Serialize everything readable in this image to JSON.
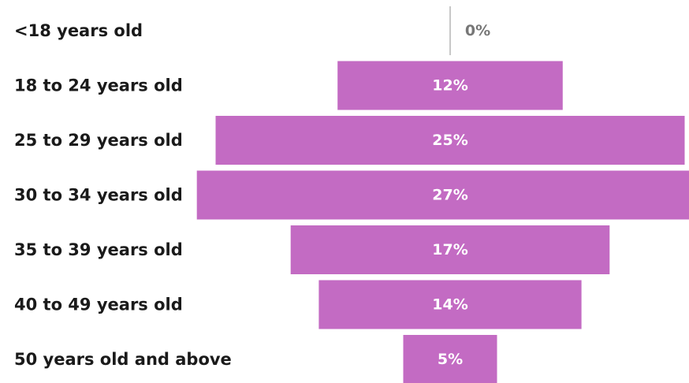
{
  "chart_data": {
    "type": "bar",
    "orientation": "horizontal-centered",
    "title": "",
    "xlabel": "",
    "ylabel": "",
    "categories": [
      "<18 years old",
      "18 to 24 years old",
      "25 to 29 years old",
      "30 to 34 years old",
      "35 to 39 years old",
      "40 to 49 years old",
      "50 years old and above"
    ],
    "values": [
      0,
      12,
      25,
      27,
      17,
      14,
      5
    ],
    "value_labels": [
      "0%",
      "12%",
      "25%",
      "27%",
      "17%",
      "14%",
      "5%"
    ],
    "unit": "%",
    "grid": false,
    "legend": "none"
  },
  "colors": {
    "bar": "#c36bc3",
    "bar_label": "#ffffff",
    "zero_label": "#777777",
    "zero_line": "#c8c8c8",
    "category_label": "#1a1a1a"
  }
}
